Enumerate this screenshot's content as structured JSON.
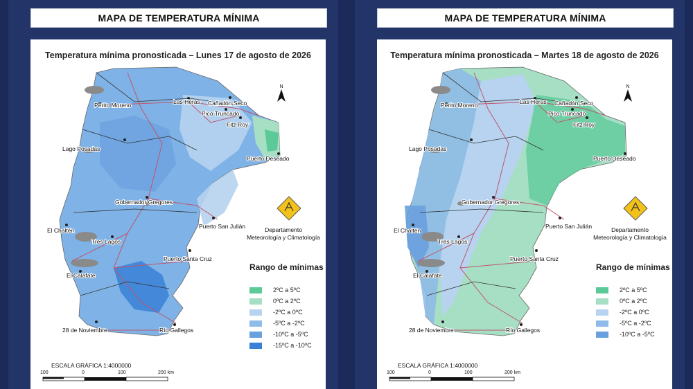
{
  "colors": {
    "background": "#1c2a5a",
    "range_colors": [
      "#5cc999",
      "#a6dfc4",
      "#b7d3f0",
      "#8fbbe8",
      "#6aa0de",
      "#3a80d6"
    ]
  },
  "panels": [
    {
      "header": "MAPA DE TEMPERATURA MÍNIMA",
      "subtitle": "Temperatura mínima pronosticada – Lunes 17 de agosto de 2026",
      "legend_title": "Rango de mínimas",
      "legend": [
        "2ºC a 5ºC",
        "0ºC a 2ºC",
        "-2ºC a 0ºC",
        "-5ºC a -2ºC",
        "-10ºC a -5ºC",
        "-15ºC a -10ºC"
      ],
      "department": [
        "Departamento",
        "Meteorología y Climatología"
      ],
      "scale_title": "ESCALA GRÁFICA 1:4000000",
      "scale_ticks": [
        "100",
        "0",
        "100",
        "200 km"
      ],
      "north_label": "N"
    },
    {
      "header": "MAPA DE TEMPERATURA MÍNIMA",
      "subtitle": "Temperatura mínima pronosticada – Martes 18 de agosto de 2026",
      "legend_title": "Rango de mínimas",
      "legend": [
        "2ºC a 5ºC",
        "0ºC a 2ºC",
        "-2ºC a 0ºC",
        "-5ºC a -2ºC",
        "-10ºC a -5ºC"
      ],
      "department": [
        "Departamento",
        "Meteorología y Climatología"
      ],
      "scale_title": "ESCALA GRÁFICA 1:4000000",
      "scale_ticks": [
        "100",
        "0",
        "100",
        "200 km"
      ],
      "north_label": "N"
    }
  ],
  "cities": [
    "Perito Moreno",
    "Las Heras",
    "Cañadón Seco",
    "Pico Truncado",
    "Fitz Roy",
    "Lago Posadas",
    "Puerto Deseado",
    "Gobernador Gregores",
    "Puerto San Julián",
    "El Chaltén",
    "Tres Lagos",
    "Puerto Santa Cruz",
    "El Calafate",
    "28 de Noviembre",
    "Río Gallegos"
  ]
}
